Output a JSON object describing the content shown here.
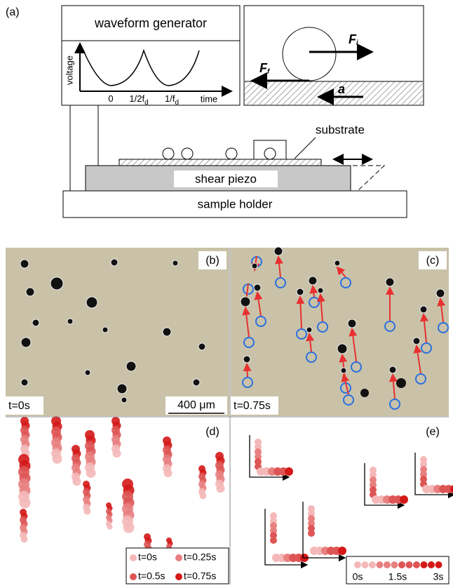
{
  "panel_a": {
    "label": "(a)",
    "generator": "waveform generator",
    "plot": {
      "y_label": "voltage",
      "x_ticks": [
        {
          "main": "0",
          "sub": ""
        },
        {
          "main": "1/2f",
          "sub": "d"
        },
        {
          "main": "1/f",
          "sub": "d"
        }
      ],
      "x_label": "time"
    },
    "forces": {
      "inertial": {
        "main": "F",
        "sub": "i"
      },
      "friction": {
        "main": "F",
        "sub": "f"
      },
      "acceleration": "a"
    },
    "substrate": "substrate",
    "piezo": "shear piezo",
    "holder": "sample holder"
  },
  "panel_b": {
    "label": "(b)",
    "time": "t=0s",
    "scale": "400 μm"
  },
  "panel_c": {
    "label": "(c)",
    "time": "t=0.75s"
  },
  "panel_d": {
    "label": "(d)",
    "legend": [
      "t=0s",
      "t=0.25s",
      "t=0.5s",
      "t=0.75s"
    ]
  },
  "panel_e": {
    "label": "(e)",
    "legend": [
      "0s",
      "1.5s",
      "3s"
    ]
  }
}
